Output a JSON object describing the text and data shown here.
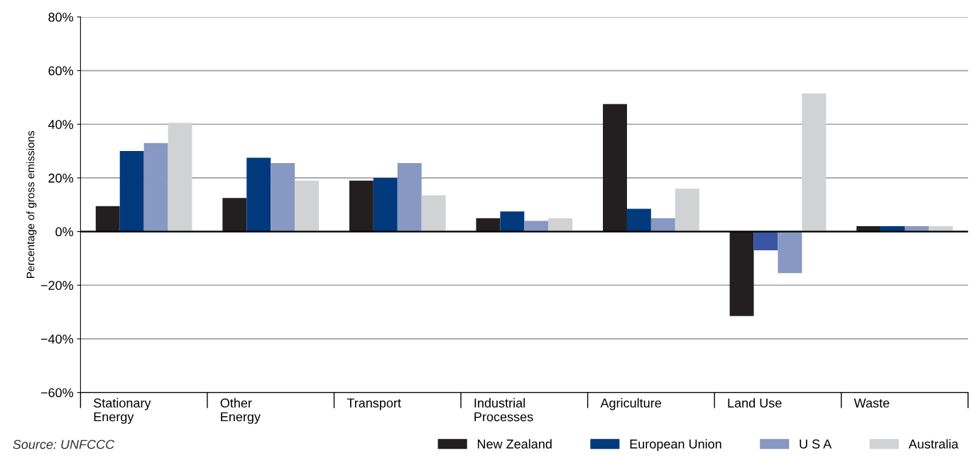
{
  "chart_data": {
    "type": "bar",
    "ylabel": "Percentage of gross emissions",
    "categories": [
      "Stationary\nEnergy",
      "Other\nEnergy",
      "Transport",
      "Industrial\nProcesses",
      "Agriculture",
      "Land Use",
      "Waste"
    ],
    "series": [
      {
        "name": "New Zealand",
        "color": "#231f20",
        "values": [
          9.5,
          12.5,
          19,
          5,
          47.5,
          -31.5,
          2
        ]
      },
      {
        "name": "European Union",
        "color": "#003a7d",
        "colors": [
          "#003a7d",
          "#003a7d",
          "#003a7d",
          "#003a7d",
          "#003a7d",
          "#3a55a4",
          "#003a7d"
        ],
        "values": [
          30,
          27.5,
          20,
          7.5,
          8.5,
          -7,
          2
        ]
      },
      {
        "name": "U S A",
        "color": "#8798c2",
        "values": [
          33,
          25.5,
          25.5,
          4,
          5,
          -15.5,
          2
        ]
      },
      {
        "name": "Australia",
        "color": "#d1d2d4",
        "values": [
          40.5,
          19,
          13.5,
          5,
          16,
          51.5,
          2
        ]
      }
    ],
    "ylim": [
      -60,
      80
    ],
    "yticks": [
      {
        "value": -60,
        "label": "−60%"
      },
      {
        "value": -40,
        "label": "−40%"
      },
      {
        "value": -20,
        "label": "−20%"
      },
      {
        "value": 0,
        "label": "0%"
      },
      {
        "value": 20,
        "label": "20%"
      },
      {
        "value": 40,
        "label": "40%"
      },
      {
        "value": 60,
        "label": "60%"
      },
      {
        "value": 80,
        "label": "80%"
      }
    ],
    "grid": "y",
    "legend": "bottom right",
    "annotations": [
      "Source: UNFCCC"
    ]
  }
}
